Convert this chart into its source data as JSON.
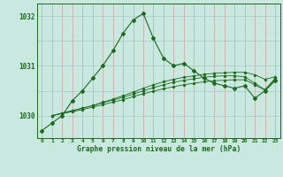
{
  "title": "Graphe pression niveau de la mer (hPa)",
  "bg_color": "#c8e8e0",
  "grid_color_v": "#d4a0a0",
  "grid_color_h": "#a8c8c8",
  "line_color": "#1a6b1a",
  "xlim": [
    -0.5,
    23.5
  ],
  "ylim": [
    1029.55,
    1032.25
  ],
  "yticks": [
    1030,
    1031,
    1032
  ],
  "xticks": [
    0,
    1,
    2,
    3,
    4,
    5,
    6,
    7,
    8,
    9,
    10,
    11,
    12,
    13,
    14,
    15,
    16,
    17,
    18,
    19,
    20,
    21,
    22,
    23
  ],
  "series1_x": [
    0,
    1,
    2,
    3,
    4,
    5,
    6,
    7,
    8,
    9,
    10,
    11,
    12,
    13,
    14,
    15,
    16,
    17,
    18,
    19,
    20,
    21,
    22,
    23
  ],
  "series1_y": [
    1029.7,
    1029.85,
    1030.0,
    1030.3,
    1030.5,
    1030.75,
    1031.0,
    1031.3,
    1031.65,
    1031.92,
    1032.05,
    1031.55,
    1031.15,
    1031.0,
    1031.05,
    1030.9,
    1030.75,
    1030.65,
    1030.6,
    1030.55,
    1030.6,
    1030.35,
    1030.5,
    1030.7
  ],
  "series2_x": [
    1,
    2,
    3,
    4,
    5,
    6,
    7,
    8,
    9,
    10,
    11,
    12,
    13,
    14,
    15,
    16,
    17,
    18,
    19,
    20,
    21,
    22,
    23
  ],
  "series2_y": [
    1030.0,
    1030.05,
    1030.1,
    1030.15,
    1030.2,
    1030.27,
    1030.33,
    1030.4,
    1030.47,
    1030.55,
    1030.62,
    1030.68,
    1030.73,
    1030.77,
    1030.8,
    1030.83,
    1030.85,
    1030.86,
    1030.87,
    1030.87,
    1030.82,
    1030.73,
    1030.78
  ],
  "series3_x": [
    1,
    2,
    3,
    4,
    5,
    6,
    7,
    8,
    9,
    10,
    11,
    12,
    13,
    14,
    15,
    16,
    17,
    18,
    19,
    20,
    21,
    22,
    23
  ],
  "series3_y": [
    1030.0,
    1030.05,
    1030.1,
    1030.15,
    1030.2,
    1030.26,
    1030.31,
    1030.37,
    1030.43,
    1030.5,
    1030.56,
    1030.62,
    1030.67,
    1030.71,
    1030.74,
    1030.77,
    1030.79,
    1030.8,
    1030.8,
    1030.78,
    1030.65,
    1030.52,
    1030.75
  ],
  "series4_x": [
    1,
    2,
    3,
    4,
    5,
    6,
    7,
    8,
    9,
    10,
    11,
    12,
    13,
    14,
    15,
    16,
    17,
    18,
    19,
    20,
    21,
    22,
    23
  ],
  "series4_y": [
    1030.0,
    1030.04,
    1030.08,
    1030.12,
    1030.17,
    1030.22,
    1030.27,
    1030.32,
    1030.38,
    1030.44,
    1030.49,
    1030.54,
    1030.58,
    1030.62,
    1030.65,
    1030.68,
    1030.7,
    1030.71,
    1030.72,
    1030.72,
    1030.62,
    1030.51,
    1030.72
  ]
}
